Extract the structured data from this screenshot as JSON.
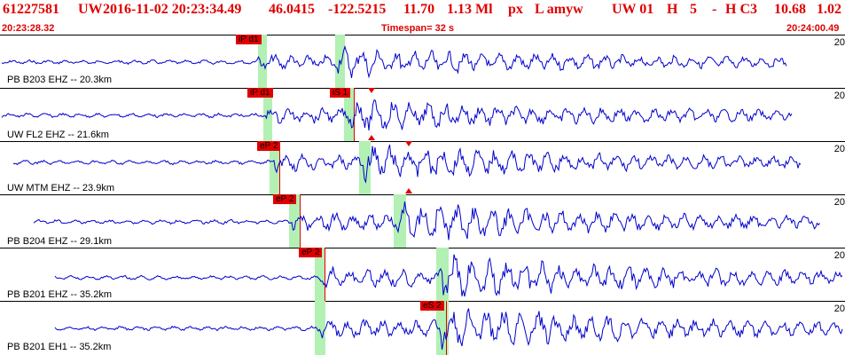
{
  "header": {
    "event_id": "61227581",
    "network": "UW",
    "datetime": "2016-11-02 20:23:34.49",
    "lat": "46.0415",
    "lon": "-122.5215",
    "depth": "11.70",
    "magnitude": "1.13 Ml",
    "type": "px",
    "flags": "L amyw",
    "source": "UW 01",
    "h": "H",
    "five": "5",
    "dash": "-",
    "hc3": "H C3",
    "val1": "10.68",
    "val2": "1.02"
  },
  "subheader": {
    "start_time": "20:23:28.32",
    "timespan": "Timespan=  32 s",
    "end_time": "20:24:00.49"
  },
  "colors": {
    "header": "#e00000",
    "trace": "#0000cc",
    "pick_window": "#b3f0b3",
    "pick_tag": "#e00000"
  },
  "traces": [
    {
      "label": "PB B203 EHZ -- 20.3km",
      "amp_label": "20",
      "picks": [
        "iP d1"
      ],
      "onset": 0.0,
      "amplitude": 0.55
    },
    {
      "label": "UW FL2 EHZ -- 21.6km",
      "amp_label": "20",
      "picks": [
        "iP d1",
        "iS 1"
      ],
      "onset": 0.0,
      "amplitude": 0.6
    },
    {
      "label": "UW MTM EHZ -- 23.9km",
      "amp_label": "20",
      "picks": [
        "eP 2"
      ],
      "onset": 0.0,
      "amplitude": 0.7
    },
    {
      "label": "PB B204 EHZ -- 29.1km",
      "amp_label": "20",
      "picks": [
        "eP 2"
      ],
      "onset": 0.0,
      "amplitude": 0.8
    },
    {
      "label": "PB B201 EHZ -- 35.2km",
      "amp_label": "20",
      "picks": [
        "eP 2"
      ],
      "onset": 0.0,
      "amplitude": 0.9
    },
    {
      "label": "PB B201 EH1 -- 35.2km",
      "amp_label": "20",
      "picks": [
        "eS 2"
      ],
      "onset": 0.0,
      "amplitude": 0.9
    }
  ]
}
